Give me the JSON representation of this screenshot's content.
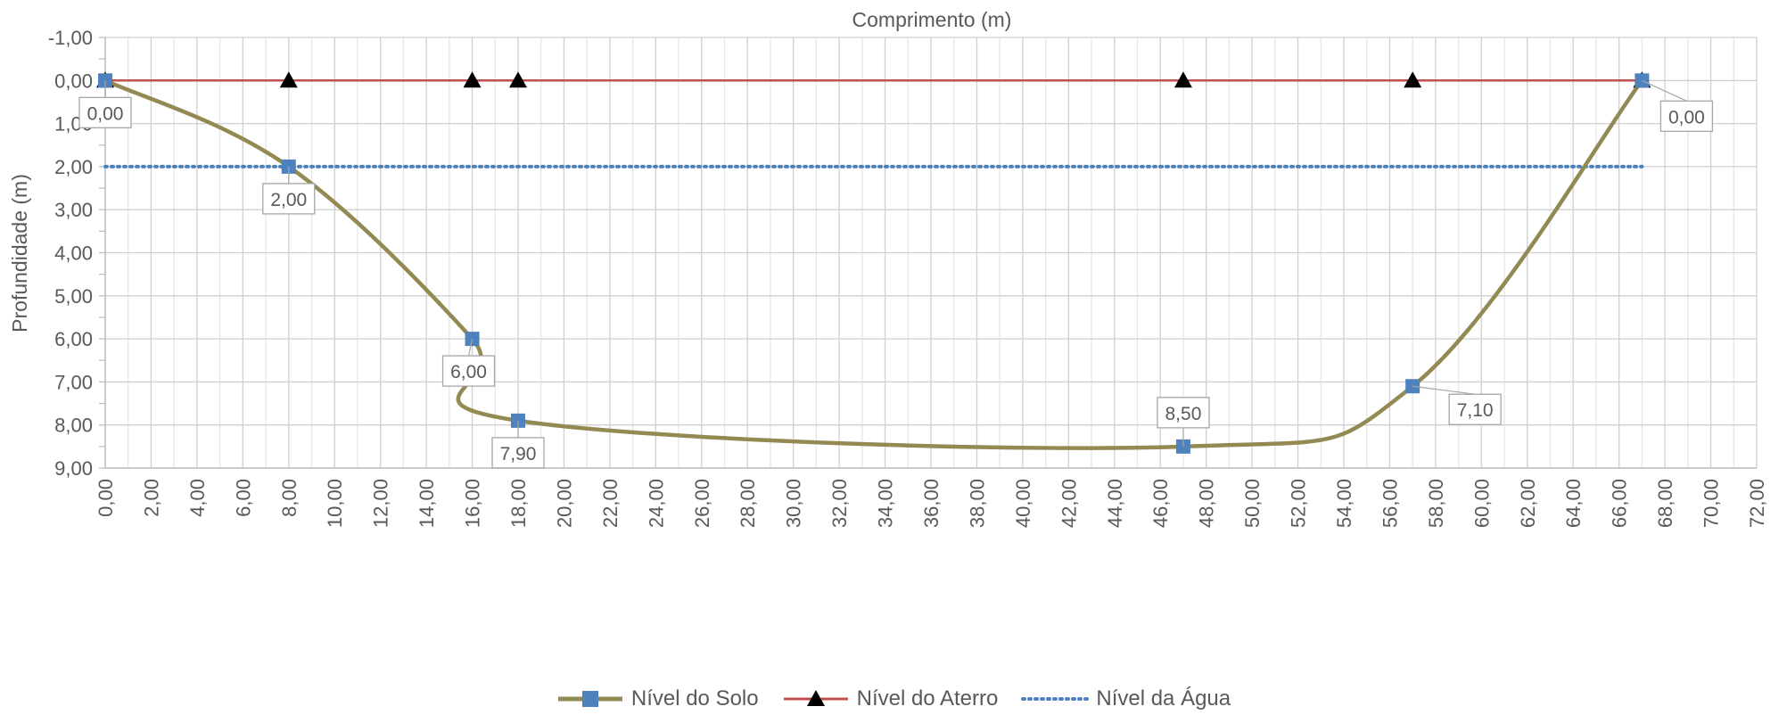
{
  "chart_data": {
    "type": "line",
    "title": "",
    "xlabel": "Comprimento (m)",
    "ylabel": "Profundidade (m)",
    "xlim": [
      0,
      72
    ],
    "ylim": [
      -1,
      9
    ],
    "y_reversed": true,
    "x_ticks": [
      "0,00",
      "2,00",
      "4,00",
      "6,00",
      "8,00",
      "10,00",
      "12,00",
      "14,00",
      "16,00",
      "18,00",
      "20,00",
      "22,00",
      "24,00",
      "26,00",
      "28,00",
      "30,00",
      "32,00",
      "34,00",
      "36,00",
      "38,00",
      "40,00",
      "42,00",
      "44,00",
      "46,00",
      "48,00",
      "50,00",
      "52,00",
      "54,00",
      "56,00",
      "58,00",
      "60,00",
      "62,00",
      "64,00",
      "66,00",
      "68,00",
      "70,00",
      "72,00"
    ],
    "y_ticks": [
      "-1,00",
      "0,00",
      "1,00",
      "2,00",
      "3,00",
      "4,00",
      "5,00",
      "6,00",
      "7,00",
      "8,00",
      "9,00"
    ],
    "grid": true,
    "legend_position": "bottom",
    "series": [
      {
        "name": "Nível do Solo",
        "color": "#938953",
        "marker": "square",
        "marker_color": "#4f81bd",
        "smooth": true,
        "x": [
          0,
          8,
          16,
          18,
          47,
          57,
          67
        ],
        "y": [
          0.0,
          2.0,
          6.0,
          7.9,
          8.5,
          7.1,
          0.0
        ],
        "labels": [
          "0,00",
          "2,00",
          "6,00",
          "7,90",
          "8,50",
          "7,10",
          "0,00"
        ]
      },
      {
        "name": "Nível do Aterro",
        "color": "#c0504d",
        "marker": "triangle",
        "marker_color": "#000000",
        "x": [
          0,
          8,
          16,
          18,
          47,
          57,
          67
        ],
        "y": [
          0,
          0,
          0,
          0,
          0,
          0,
          0
        ]
      },
      {
        "name": "Nível da Água",
        "color": "#4f81bd",
        "marker": "none",
        "line_style": "dotted",
        "x": [
          0,
          67
        ],
        "y": [
          2,
          2
        ]
      }
    ]
  }
}
